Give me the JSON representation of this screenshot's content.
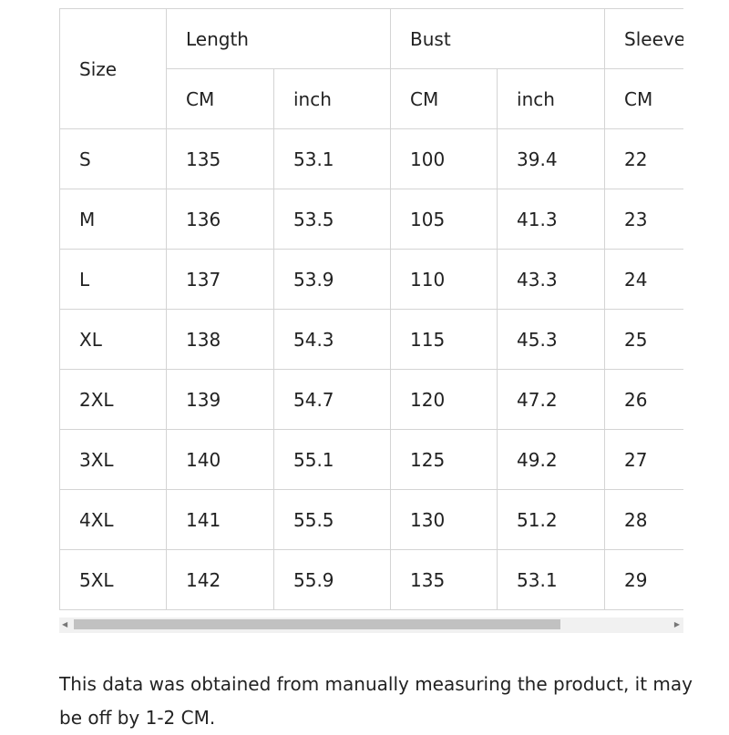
{
  "table": {
    "header": {
      "size": "Size",
      "groups": [
        "Length",
        "Bust",
        "Sleeve"
      ],
      "units": [
        "CM",
        "inch",
        "CM",
        "inch",
        "CM"
      ]
    },
    "rows": [
      [
        "S",
        "135",
        "53.1",
        "100",
        "39.4",
        "22"
      ],
      [
        "M",
        "136",
        "53.5",
        "105",
        "41.3",
        "23"
      ],
      [
        "L",
        "137",
        "53.9",
        "110",
        "43.3",
        "24"
      ],
      [
        "XL",
        "138",
        "54.3",
        "115",
        "45.3",
        "25"
      ],
      [
        "2XL",
        "139",
        "54.7",
        "120",
        "47.2",
        "26"
      ],
      [
        "3XL",
        "140",
        "55.1",
        "125",
        "49.2",
        "27"
      ],
      [
        "4XL",
        "141",
        "55.5",
        "130",
        "51.2",
        "28"
      ],
      [
        "5XL",
        "142",
        "55.9",
        "135",
        "53.1",
        "29"
      ]
    ]
  },
  "scrollbar": {
    "position_percent": 0,
    "visible_fraction": 0.8
  },
  "note": "This data was obtained from manually measuring the product, it may be off by 1-2 CM."
}
